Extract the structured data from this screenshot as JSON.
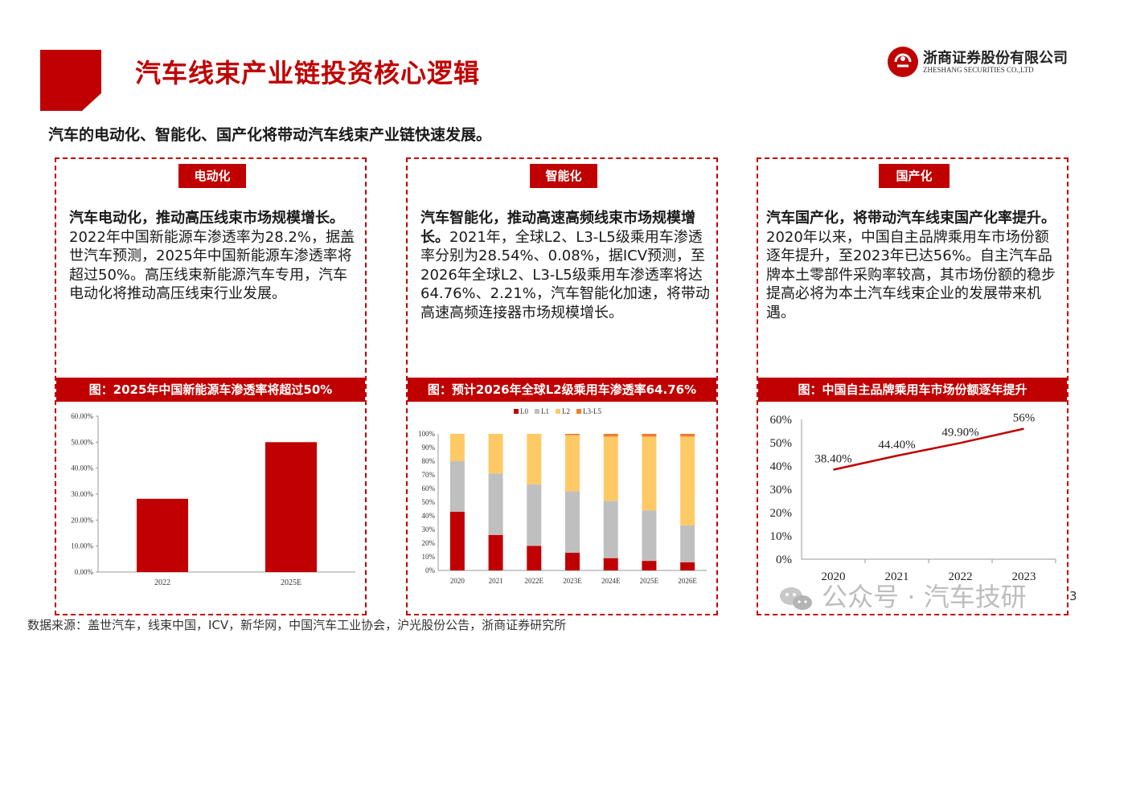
{
  "header": {
    "title": "汽车线束产业链投资核心逻辑",
    "logo_cn": "浙商证券股份有限公司",
    "logo_en": "ZHESHANG SECURITIES CO.,LTD"
  },
  "subtitle": "汽车的电动化、智能化、国产化将带动汽车线束产业链快速发展。",
  "panels": [
    {
      "tag": "电动化",
      "bold": "汽车电动化，推动高压线束市场规模增长。",
      "text": "2022年中国新能源车渗透率为28.2%，据盖世汽车预测，2025年中国新能源车渗透率将超过50%。高压线束新能源汽车专用，汽车电动化将推动高压线束行业发展。",
      "caption": "图：2025年中国新能源车渗透率将超过50%"
    },
    {
      "tag": "智能化",
      "bold": "汽车智能化，推动高速高频线束市场规模增长。",
      "text": "2021年，全球L2、L3-L5级乘用车渗透率分别为28.54%、0.08%，据ICV预测，至2026年全球L2、L3-L5级乘用车渗透率将达64.76%、2.21%，汽车智能化加速，将带动高速高频连接器市场规模增长。",
      "caption": "图：预计2026年全球L2级乘用车渗透率64.76%"
    },
    {
      "tag": "国产化",
      "bold": "汽车国产化，将带动汽车线束国产化率提升。",
      "text": "2020年以来，中国自主品牌乘用车市场份额逐年提升，至2023年已达56%。自主汽车品牌本土零部件采购率较高，其市场份额的稳步提高必将为本土汽车线束企业的发展带来机遇。",
      "caption": "图：中国自主品牌乘用车市场份额逐年提升"
    }
  ],
  "chart_data": [
    {
      "type": "bar",
      "categories": [
        "2022",
        "2025E"
      ],
      "values": [
        28.2,
        50.0
      ],
      "yticks": [
        "0.00%",
        "10.00%",
        "20.00%",
        "30.00%",
        "40.00%",
        "50.00%",
        "60.00%"
      ],
      "ylim": [
        0,
        60
      ],
      "color": "#c00000"
    },
    {
      "type": "bar",
      "stacked": true,
      "categories": [
        "2020",
        "2021",
        "2022E",
        "2023E",
        "2024E",
        "2025E",
        "2026E"
      ],
      "series": [
        {
          "name": "L0",
          "color": "#c00000",
          "values": [
            43,
            26,
            18,
            13,
            9,
            7,
            6
          ]
        },
        {
          "name": "L1",
          "color": "#bfbfbf",
          "values": [
            37,
            45,
            45,
            45,
            42,
            37,
            27
          ]
        },
        {
          "name": "L2",
          "color": "#ffc966",
          "values": [
            20,
            29,
            37,
            41,
            47,
            54,
            65
          ]
        },
        {
          "name": "L3-L5",
          "color": "#ed7d31",
          "values": [
            0,
            0,
            0,
            1,
            2,
            2,
            2
          ]
        }
      ],
      "yticks": [
        "0%",
        "10%",
        "20%",
        "30%",
        "40%",
        "50%",
        "60%",
        "70%",
        "80%",
        "90%",
        "100%"
      ],
      "ylim": [
        0,
        100
      ],
      "legend": "top"
    },
    {
      "type": "line",
      "x": [
        "2020",
        "2021",
        "2022",
        "2023"
      ],
      "values": [
        38.4,
        44.4,
        49.9,
        56.0
      ],
      "labels": [
        "38.40%",
        "44.40%",
        "49.90%",
        "56%"
      ],
      "yticks": [
        "0%",
        "10%",
        "20%",
        "30%",
        "40%",
        "50%",
        "60%"
      ],
      "ylim": [
        0,
        60
      ],
      "color": "#c00000"
    }
  ],
  "footer": {
    "source": "数据来源：盖世汽车，线束中国，ICV，新华网，中国汽车工业协会，沪光股份公告，浙商证券研究所",
    "watermark": "公众号 · 汽车技研",
    "page": "3"
  }
}
